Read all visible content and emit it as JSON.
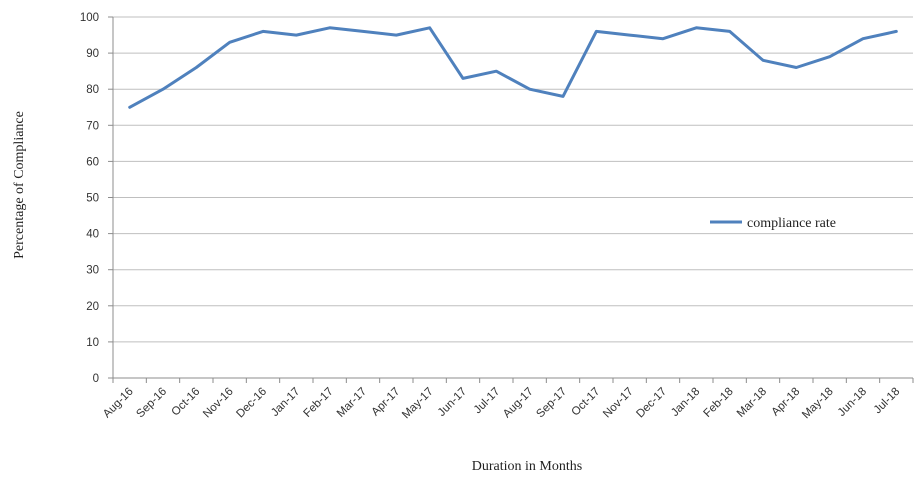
{
  "chart_data": {
    "type": "line",
    "xlabel": "Duration  in  Months",
    "ylabel": "Percentage  of  Compliance",
    "ylim": [
      0,
      100
    ],
    "yticks": [
      0,
      10,
      20,
      30,
      40,
      50,
      60,
      70,
      80,
      90,
      100
    ],
    "grid": "horizontal",
    "legend_position": "right",
    "categories": [
      "Aug-16",
      "Sep-16",
      "Oct-16",
      "Nov-16",
      "Dec-16",
      "Jan-17",
      "Feb-17",
      "Mar-17",
      "Apr-17",
      "May-17",
      "Jun-17",
      "Jul-17",
      "Aug-17",
      "Sep-17",
      "Oct-17",
      "Nov-17",
      "Dec-17",
      "Jan-18",
      "Feb-18",
      "Mar-18",
      "Apr-18",
      "May-18",
      "Jun-18",
      "Jul-18"
    ],
    "series": [
      {
        "name": "compliance rate",
        "color": "#4f81bd",
        "values": [
          75,
          80,
          86,
          93,
          96,
          95,
          97,
          96,
          95,
          97,
          83,
          85,
          80,
          78,
          96,
          95,
          94,
          97,
          96,
          88,
          86,
          89,
          94,
          96
        ]
      }
    ]
  }
}
